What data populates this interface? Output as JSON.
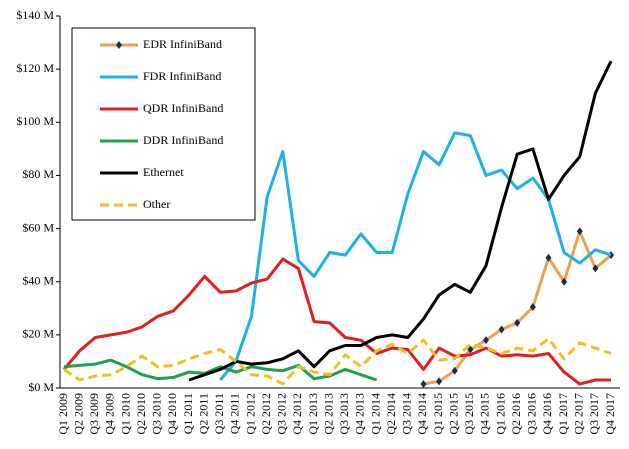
{
  "chart_data": {
    "type": "line",
    "categories": [
      "Q1 2009",
      "Q2 2009",
      "Q3 2009",
      "Q4 2009",
      "Q1 2010",
      "Q2 2010",
      "Q3 2010",
      "Q4 2010",
      "Q1 2011",
      "Q2 2011",
      "Q3 2011",
      "Q4 2011",
      "Q1 2012",
      "Q2 2012",
      "Q3 2012",
      "Q4 2012",
      "Q1 2013",
      "Q2 2013",
      "Q3 2013",
      "Q4 2013",
      "Q1 2014",
      "Q2 2014",
      "Q3 2014",
      "Q4 2014",
      "Q1 2015",
      "Q2 2015",
      "Q3 2015",
      "Q4 2015",
      "Q1 2016",
      "Q2 2016",
      "Q3 2016",
      "Q4 2016",
      "Q1 2017",
      "Q2 2017",
      "Q3 2017",
      "Q4 2017"
    ],
    "series": [
      {
        "name": "EDR InfiniBand",
        "color": "#f0a050",
        "values": [
          null,
          null,
          null,
          null,
          null,
          null,
          null,
          null,
          null,
          null,
          null,
          null,
          null,
          null,
          null,
          null,
          null,
          null,
          null,
          null,
          null,
          null,
          null,
          1.5,
          2.5,
          6.5,
          14.5,
          18,
          22,
          24.5,
          30.5,
          49,
          40,
          59,
          45,
          50
        ]
      },
      {
        "name": "FDR InfiniBand",
        "color": "#1eb0e8",
        "values": [
          null,
          null,
          null,
          null,
          null,
          null,
          null,
          null,
          null,
          null,
          3,
          10,
          27,
          72,
          89,
          48,
          42,
          51,
          50,
          58,
          51,
          51,
          73,
          89,
          84,
          96,
          95,
          80,
          82,
          75,
          79,
          71,
          51,
          47,
          52,
          50
        ]
      },
      {
        "name": "QDR InfiniBand",
        "color": "#e02020",
        "values": [
          7,
          14,
          19,
          20,
          21,
          23,
          27,
          29,
          35,
          42,
          36,
          36.5,
          39.5,
          41,
          48.5,
          45,
          25,
          24.5,
          19,
          18,
          13,
          15,
          14.5,
          7,
          15,
          12,
          12.5,
          15,
          12,
          12.5,
          12,
          13,
          6,
          1.5,
          3,
          3
        ]
      },
      {
        "name": "DDR InfiniBand",
        "color": "#20a050",
        "values": [
          8,
          8.5,
          9,
          10.5,
          8,
          5,
          3.5,
          4,
          6,
          5.5,
          8,
          6,
          8,
          7,
          6.5,
          8.5,
          3.5,
          4.5,
          7,
          5,
          3,
          null,
          null,
          null,
          null,
          null,
          null,
          null,
          null,
          null,
          null,
          null,
          null,
          null,
          null,
          null
        ]
      },
      {
        "name": "Ethernet",
        "color": "#000000",
        "values": [
          null,
          null,
          null,
          null,
          null,
          null,
          null,
          null,
          3,
          5,
          7,
          10,
          9,
          9.5,
          11,
          14,
          8,
          14,
          16,
          16,
          19,
          20,
          19,
          26,
          35,
          39,
          36,
          46,
          68,
          88,
          90,
          71,
          80,
          87,
          111,
          123
        ]
      },
      {
        "name": "Other",
        "color": "#f0c020",
        "dashed": true,
        "values": [
          7,
          3,
          4.5,
          5,
          8,
          12,
          8,
          8.5,
          11,
          13,
          14.5,
          10,
          5,
          4.5,
          1.5,
          8,
          6,
          5,
          12.5,
          8,
          14,
          16.5,
          13,
          18,
          10.5,
          11,
          16.5,
          15,
          13,
          15,
          14,
          18.5,
          11,
          17,
          15,
          13
        ]
      }
    ],
    "ylim": [
      0,
      140
    ],
    "yticks": [
      {
        "value": 0,
        "label": "$0 M"
      },
      {
        "value": 20,
        "label": "$20 M"
      },
      {
        "value": 40,
        "label": "$40 M"
      },
      {
        "value": 60,
        "label": "$60 M"
      },
      {
        "value": 80,
        "label": "$80 M"
      },
      {
        "value": 100,
        "label": "$100 M"
      },
      {
        "value": 120,
        "label": "$120 M"
      },
      {
        "value": 140,
        "label": "$140 M"
      }
    ],
    "legend": "upper left"
  }
}
